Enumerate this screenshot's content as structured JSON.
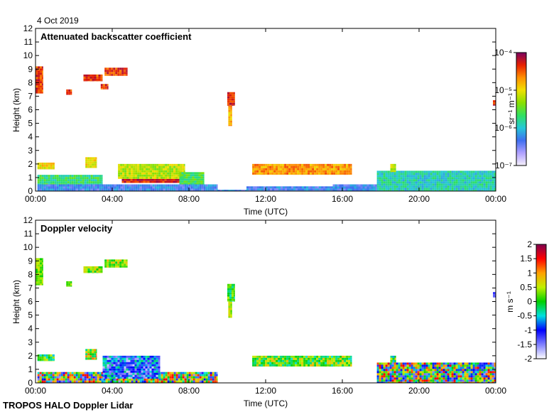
{
  "date_label": "4 Oct 2019",
  "footer": "TROPOS HALO Doppler Lidar",
  "colors": {
    "background": "#ffffff",
    "backscatter_scale": [
      "#f5f0fa",
      "#b0a0ff",
      "#3f6ff0",
      "#25c8d8",
      "#30e060",
      "#8ae000",
      "#f0e000",
      "#ff9000",
      "#e82000",
      "#7a0060"
    ],
    "velocity_scale": [
      "#ffffff",
      "#8080ff",
      "#0000ff",
      "#00e0e0",
      "#00d000",
      "#c0f000",
      "#ffa000",
      "#ff0000",
      "#7f004f"
    ]
  },
  "chart_data": [
    {
      "type": "heatmap",
      "title": "Attenuated backscatter coefficient",
      "xlabel": "Time (UTC)",
      "ylabel": "Height (km)",
      "x_ticks": [
        "00:00",
        "04:00",
        "08:00",
        "12:00",
        "16:00",
        "20:00",
        "00:00"
      ],
      "y_ticks": [
        "0",
        "1",
        "2",
        "3",
        "4",
        "5",
        "6",
        "7",
        "8",
        "9",
        "10",
        "11",
        "12"
      ],
      "xlim_hours": [
        0,
        24
      ],
      "ylim": [
        0,
        12
      ],
      "colorbar": {
        "label": "sr⁻¹ m⁻¹",
        "scale": "log",
        "range": [
          1e-07,
          0.0001
        ],
        "ticks": [
          "10⁻⁴",
          "10⁻⁵",
          "10⁻⁶",
          "10⁻⁷"
        ]
      },
      "features": [
        {
          "t": [
            0.1,
            9.5
          ],
          "h": [
            0,
            0.5
          ],
          "log_value": -6.3
        },
        {
          "t": [
            9.5,
            11.0
          ],
          "h": [
            0,
            0.1
          ],
          "log_value": -6.3
        },
        {
          "t": [
            11.0,
            15.5
          ],
          "h": [
            0,
            0.35
          ],
          "log_value": -6.3
        },
        {
          "t": [
            15.5,
            17.8
          ],
          "h": [
            0,
            0.5
          ],
          "log_value": -6.3
        },
        {
          "t": [
            17.8,
            24.0
          ],
          "h": [
            0,
            1.5
          ],
          "log_value": -5.9
        },
        {
          "t": [
            0.1,
            3.5
          ],
          "h": [
            0.5,
            1.2
          ],
          "log_value": -5.7
        },
        {
          "t": [
            0.1,
            1.0
          ],
          "h": [
            1.6,
            2.1
          ],
          "log_value": -5.0
        },
        {
          "t": [
            2.6,
            3.2
          ],
          "h": [
            1.7,
            2.5
          ],
          "log_value": -5.0
        },
        {
          "t": [
            4.5,
            7.5
          ],
          "h": [
            0.6,
            0.9
          ],
          "log_value": -4.3
        },
        {
          "t": [
            4.3,
            7.8
          ],
          "h": [
            0.9,
            2.0
          ],
          "log_value": -5.2
        },
        {
          "t": [
            7.5,
            8.8
          ],
          "h": [
            0.5,
            1.4
          ],
          "log_value": -5.6
        },
        {
          "t": [
            11.3,
            16.5
          ],
          "h": [
            1.2,
            2.0
          ],
          "log_value": -4.7
        },
        {
          "t": [
            18.5,
            18.8
          ],
          "h": [
            1.4,
            2.0
          ],
          "log_value": -5.2
        },
        {
          "t": [
            10.0,
            10.4
          ],
          "h": [
            6.3,
            7.3
          ],
          "log_value": -4.3
        },
        {
          "t": [
            10.05,
            10.25
          ],
          "h": [
            4.8,
            6.3
          ],
          "log_value": -4.8
        },
        {
          "t": [
            0.0,
            0.4
          ],
          "h": [
            7.2,
            9.2
          ],
          "log_value": -4.4
        },
        {
          "t": [
            1.6,
            1.9
          ],
          "h": [
            7.1,
            7.5
          ],
          "log_value": -4.4
        },
        {
          "t": [
            2.5,
            3.5
          ],
          "h": [
            8.1,
            8.6
          ],
          "log_value": -4.4
        },
        {
          "t": [
            3.4,
            3.8
          ],
          "h": [
            7.5,
            7.9
          ],
          "log_value": -4.4
        },
        {
          "t": [
            3.6,
            4.8
          ],
          "h": [
            8.5,
            9.1
          ],
          "log_value": -4.4
        },
        {
          "t": [
            23.85,
            24.0
          ],
          "h": [
            6.3,
            6.7
          ],
          "log_value": -4.3
        }
      ]
    },
    {
      "type": "heatmap",
      "title": "Doppler velocity",
      "xlabel": "Time (UTC)",
      "ylabel": "Height (km)",
      "x_ticks": [
        "00:00",
        "04:00",
        "08:00",
        "12:00",
        "16:00",
        "20:00",
        "00:00"
      ],
      "y_ticks": [
        "0",
        "1",
        "2",
        "3",
        "4",
        "5",
        "6",
        "7",
        "8",
        "9",
        "10",
        "11",
        "12"
      ],
      "xlim_hours": [
        0,
        24
      ],
      "ylim": [
        0,
        12
      ],
      "colorbar": {
        "label": "m s⁻¹",
        "scale": "linear",
        "range": [
          -2,
          2
        ],
        "ticks": [
          "2",
          "1.5",
          "1",
          "0.5",
          "0",
          "-0.5",
          "-1",
          "-1.5",
          "-2"
        ]
      },
      "features": [
        {
          "t": [
            0.1,
            9.5
          ],
          "h": [
            0,
            0.8
          ],
          "vel": 0.0,
          "spread": 1.6
        },
        {
          "t": [
            3.5,
            6.5
          ],
          "h": [
            0.3,
            2.0
          ],
          "vel": -1.0,
          "spread": 0.8
        },
        {
          "t": [
            0.1,
            1.0
          ],
          "h": [
            1.6,
            2.1
          ],
          "vel": 0.0,
          "spread": 0.6
        },
        {
          "t": [
            2.6,
            3.2
          ],
          "h": [
            1.7,
            2.5
          ],
          "vel": 0.5,
          "spread": 0.8
        },
        {
          "t": [
            11.3,
            16.5
          ],
          "h": [
            1.2,
            2.0
          ],
          "vel": 0.2,
          "spread": 0.7
        },
        {
          "t": [
            18.5,
            18.8
          ],
          "h": [
            1.4,
            2.0
          ],
          "vel": 0.0,
          "spread": 0.8
        },
        {
          "t": [
            17.8,
            24.0
          ],
          "h": [
            0,
            1.5
          ],
          "vel": 0.0,
          "spread": 1.6
        },
        {
          "t": [
            10.0,
            10.4
          ],
          "h": [
            6.0,
            7.3
          ],
          "vel": 0.0,
          "spread": 0.5
        },
        {
          "t": [
            10.05,
            10.25
          ],
          "h": [
            4.8,
            6.0
          ],
          "vel": 0.5,
          "spread": 0.4
        },
        {
          "t": [
            0.0,
            0.4
          ],
          "h": [
            7.2,
            9.2
          ],
          "vel": 0.3,
          "spread": 0.3
        },
        {
          "t": [
            1.6,
            1.9
          ],
          "h": [
            7.1,
            7.5
          ],
          "vel": 0.3,
          "spread": 0.3
        },
        {
          "t": [
            2.5,
            3.5
          ],
          "h": [
            8.1,
            8.6
          ],
          "vel": 0.3,
          "spread": 0.5
        },
        {
          "t": [
            3.6,
            4.8
          ],
          "h": [
            8.5,
            9.1
          ],
          "vel": 0.4,
          "spread": 0.5
        },
        {
          "t": [
            23.85,
            24.0
          ],
          "h": [
            6.3,
            6.7
          ],
          "vel": -1.2,
          "spread": 0.2
        }
      ]
    }
  ]
}
